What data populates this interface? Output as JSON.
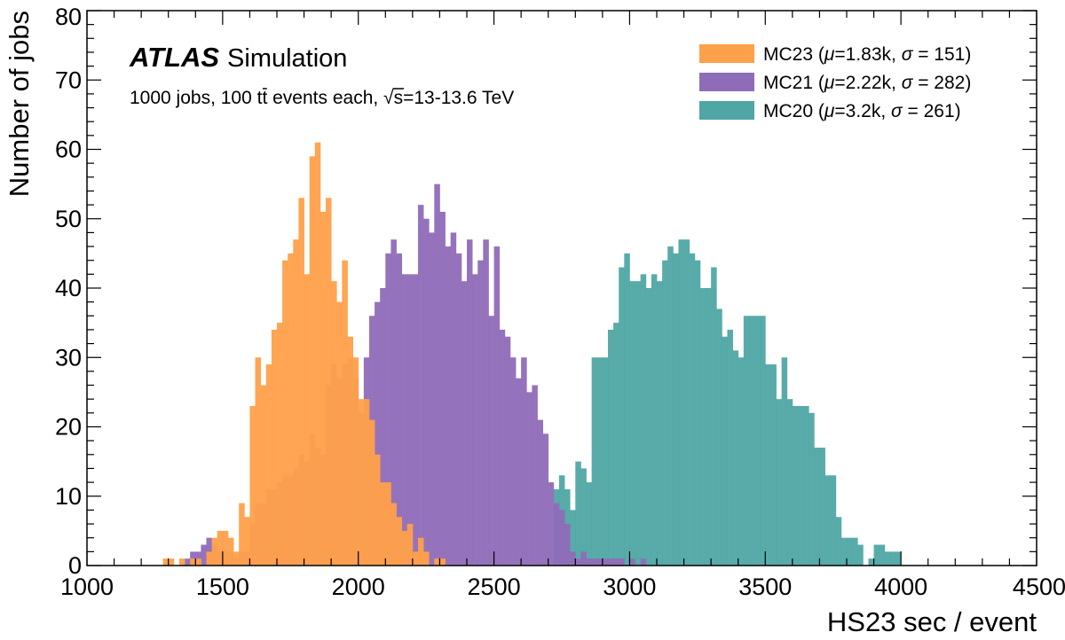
{
  "chart_data": {
    "type": "bar",
    "histogram": true,
    "xlabel": "HS23 sec / event",
    "ylabel": "Number of jobs",
    "xlim": [
      1000,
      4500
    ],
    "ylim": [
      0,
      80
    ],
    "bin_width": 20,
    "x_ticks": [
      "1000",
      "1500",
      "2000",
      "2500",
      "3000",
      "3500",
      "4000",
      "4500"
    ],
    "y_ticks": [
      "0",
      "10",
      "20",
      "30",
      "40",
      "50",
      "60",
      "70",
      "80"
    ],
    "grid": false,
    "legend_position": "top-right",
    "annotations": {
      "brand": "ATLAS",
      "label": "Simulation",
      "line2_prefix": "1000 jobs, 100 ",
      "process": "tt",
      "line2_mid": " events each, ",
      "sqrt_s": "s",
      "line2_suffix": "=13-13.6 TeV"
    },
    "series": [
      {
        "name": "MC20",
        "legend": {
          "name": "MC20",
          "mu": "3.2k",
          "sigma": "261"
        },
        "color": "#4fa6a4",
        "x": [
          2500,
          2720,
          2740,
          2760,
          2780,
          2800,
          2820,
          2840,
          2860,
          2880,
          2900,
          2920,
          2940,
          2960,
          2980,
          3000,
          3020,
          3040,
          3060,
          3080,
          3100,
          3120,
          3140,
          3160,
          3180,
          3200,
          3220,
          3240,
          3260,
          3280,
          3300,
          3320,
          3340,
          3360,
          3380,
          3400,
          3420,
          3440,
          3460,
          3480,
          3500,
          3520,
          3540,
          3560,
          3580,
          3600,
          3620,
          3640,
          3660,
          3680,
          3700,
          3720,
          3740,
          3760,
          3780,
          3800,
          3820,
          3840,
          3880,
          3900,
          3920,
          3940,
          3960,
          3980
        ],
        "values": [
          0,
          11,
          13,
          11,
          8,
          15,
          14,
          12,
          30,
          30,
          30,
          34,
          35,
          43,
          45,
          41,
          41,
          42,
          40,
          42,
          41,
          44,
          46,
          45,
          47,
          47,
          45,
          44,
          40,
          40,
          43,
          37,
          33,
          34,
          31,
          30,
          36,
          36,
          36,
          36,
          29,
          29,
          24,
          30,
          24,
          23,
          23,
          23,
          22,
          17,
          17,
          13,
          13,
          7,
          4,
          4,
          4,
          3,
          1,
          3,
          3,
          2,
          2,
          2
        ]
      },
      {
        "name": "MC21",
        "legend": {
          "name": "MC21",
          "mu": "2.22k",
          "sigma": "282"
        },
        "color": "#8f6cb8",
        "x": [
          1360,
          1380,
          1400,
          1420,
          1440,
          1460,
          1480,
          1500,
          1520,
          1540,
          1560,
          1580,
          1600,
          1620,
          1640,
          1660,
          1680,
          1700,
          1720,
          1740,
          1760,
          1780,
          1800,
          1820,
          1840,
          1860,
          1880,
          1900,
          1920,
          1940,
          1960,
          1980,
          2000,
          2020,
          2040,
          2060,
          2080,
          2100,
          2120,
          2140,
          2160,
          2180,
          2200,
          2220,
          2240,
          2260,
          2280,
          2300,
          2320,
          2340,
          2360,
          2380,
          2400,
          2420,
          2440,
          2460,
          2480,
          2500,
          2520,
          2540,
          2560,
          2580,
          2600,
          2620,
          2640,
          2660,
          2680,
          2700,
          2720,
          2740,
          2760,
          2780,
          2800,
          2820,
          2840,
          2860,
          2880,
          2900,
          2920,
          2940,
          2960,
          2980,
          3000,
          3020,
          3040
        ],
        "values": [
          1,
          2,
          2,
          3,
          4,
          3,
          2,
          2,
          2,
          1,
          2,
          2,
          6,
          9,
          9,
          11,
          11,
          12,
          13,
          13,
          14,
          16,
          15,
          19,
          17,
          16,
          26,
          29,
          27,
          29,
          30,
          27,
          22,
          30,
          36,
          38,
          40,
          45,
          47,
          45,
          42,
          42,
          42,
          52,
          50,
          48,
          55,
          51,
          46,
          48,
          45,
          41,
          47,
          42,
          44,
          47,
          36,
          46,
          34,
          33,
          30,
          27,
          30,
          25,
          26,
          21,
          19,
          12,
          9,
          8,
          6,
          2,
          1,
          2,
          1,
          1,
          1,
          1,
          1,
          1,
          1,
          0,
          1,
          0,
          1
        ]
      },
      {
        "name": "MC23",
        "legend": {
          "name": "MC23",
          "mu": "1.83k",
          "sigma": "151"
        },
        "color": "#ffa04a",
        "x": [
          1280,
          1300,
          1320,
          1340,
          1360,
          1380,
          1400,
          1420,
          1440,
          1460,
          1480,
          1500,
          1520,
          1540,
          1560,
          1580,
          1600,
          1620,
          1640,
          1660,
          1680,
          1700,
          1720,
          1740,
          1760,
          1780,
          1800,
          1820,
          1840,
          1860,
          1880,
          1900,
          1920,
          1940,
          1960,
          1980,
          2000,
          2020,
          2040,
          2060,
          2080,
          2100,
          2120,
          2140,
          2160,
          2180,
          2200,
          2220,
          2240,
          2260,
          2280,
          2300
        ],
        "values": [
          1,
          1,
          0,
          1,
          0,
          1,
          1,
          0,
          2,
          4,
          5,
          5,
          4,
          2,
          9,
          7,
          23,
          30,
          26,
          29,
          34,
          35,
          44,
          45,
          47,
          53,
          42,
          59,
          61,
          51,
          53,
          41,
          38,
          44,
          33,
          30,
          24,
          24,
          21,
          16,
          12,
          12,
          9,
          7,
          5,
          6,
          2,
          4,
          2,
          0,
          1,
          1
        ]
      }
    ]
  }
}
